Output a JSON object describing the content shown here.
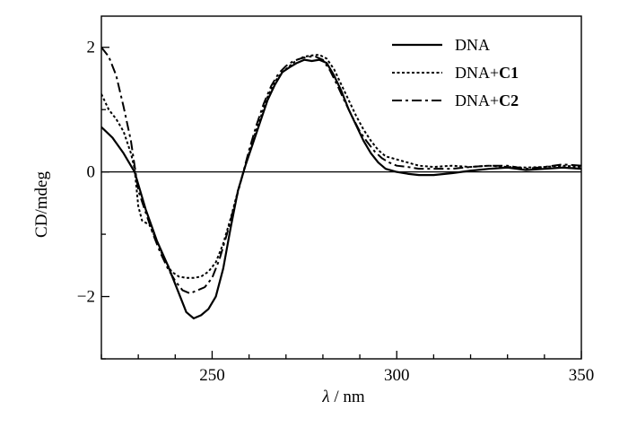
{
  "chart_data": {
    "type": "line",
    "xlabel": {
      "symbol": "λ",
      "unit": "/ nm"
    },
    "ylabel": "CD/mdeg",
    "xlim": [
      220,
      350
    ],
    "ylim": [
      -3.0,
      2.5
    ],
    "xticks": [
      250,
      300,
      350
    ],
    "xtick_labels": [
      "250",
      "300",
      "350"
    ],
    "yticks": [
      -2,
      0,
      2
    ],
    "ytick_labels": [
      "−2",
      "0",
      "2"
    ],
    "x_minor_step": 10,
    "y_minor_step": 1,
    "zero_line": true,
    "grid": false,
    "legend_position": "top-right",
    "series": [
      {
        "name": "DNA",
        "name_prefix": "DNA",
        "name_bold": "",
        "style": "solid",
        "points": [
          [
            220,
            0.72
          ],
          [
            223,
            0.55
          ],
          [
            226,
            0.3
          ],
          [
            229,
            0.0
          ],
          [
            232,
            -0.6
          ],
          [
            235,
            -1.1
          ],
          [
            238,
            -1.5
          ],
          [
            241,
            -1.95
          ],
          [
            243,
            -2.25
          ],
          [
            245,
            -2.35
          ],
          [
            247,
            -2.3
          ],
          [
            249,
            -2.2
          ],
          [
            251,
            -2.0
          ],
          [
            253,
            -1.55
          ],
          [
            255,
            -0.9
          ],
          [
            257,
            -0.3
          ],
          [
            259,
            0.1
          ],
          [
            261,
            0.45
          ],
          [
            263,
            0.8
          ],
          [
            265,
            1.15
          ],
          [
            267,
            1.4
          ],
          [
            269,
            1.6
          ],
          [
            271,
            1.68
          ],
          [
            273,
            1.75
          ],
          [
            275,
            1.8
          ],
          [
            277,
            1.78
          ],
          [
            279,
            1.8
          ],
          [
            281,
            1.75
          ],
          [
            283,
            1.55
          ],
          [
            285,
            1.3
          ],
          [
            287,
            1.0
          ],
          [
            289,
            0.75
          ],
          [
            291,
            0.5
          ],
          [
            293,
            0.3
          ],
          [
            295,
            0.15
          ],
          [
            297,
            0.05
          ],
          [
            300,
            0.0
          ],
          [
            303,
            -0.03
          ],
          [
            306,
            -0.05
          ],
          [
            310,
            -0.05
          ],
          [
            315,
            -0.02
          ],
          [
            320,
            0.02
          ],
          [
            325,
            0.05
          ],
          [
            330,
            0.07
          ],
          [
            335,
            0.03
          ],
          [
            340,
            0.05
          ],
          [
            345,
            0.07
          ],
          [
            350,
            0.05
          ]
        ]
      },
      {
        "name": "DNA+C1",
        "name_prefix": "DNA+",
        "name_bold": "C1",
        "style": "dotted",
        "points": [
          [
            220,
            1.25
          ],
          [
            222,
            1.0
          ],
          [
            224,
            0.85
          ],
          [
            226,
            0.65
          ],
          [
            228,
            0.3
          ],
          [
            229,
            0.05
          ],
          [
            230,
            -0.55
          ],
          [
            231,
            -0.78
          ],
          [
            233,
            -0.85
          ],
          [
            235,
            -1.1
          ],
          [
            237,
            -1.4
          ],
          [
            239,
            -1.6
          ],
          [
            241,
            -1.68
          ],
          [
            243,
            -1.7
          ],
          [
            245,
            -1.7
          ],
          [
            247,
            -1.68
          ],
          [
            249,
            -1.6
          ],
          [
            251,
            -1.45
          ],
          [
            253,
            -1.15
          ],
          [
            255,
            -0.75
          ],
          [
            257,
            -0.3
          ],
          [
            259,
            0.1
          ],
          [
            261,
            0.5
          ],
          [
            263,
            0.85
          ],
          [
            265,
            1.2
          ],
          [
            267,
            1.45
          ],
          [
            269,
            1.6
          ],
          [
            271,
            1.7
          ],
          [
            273,
            1.8
          ],
          [
            275,
            1.85
          ],
          [
            277,
            1.87
          ],
          [
            279,
            1.88
          ],
          [
            281,
            1.82
          ],
          [
            283,
            1.65
          ],
          [
            285,
            1.4
          ],
          [
            287,
            1.15
          ],
          [
            289,
            0.9
          ],
          [
            291,
            0.68
          ],
          [
            293,
            0.5
          ],
          [
            295,
            0.35
          ],
          [
            297,
            0.25
          ],
          [
            300,
            0.2
          ],
          [
            303,
            0.15
          ],
          [
            306,
            0.1
          ],
          [
            310,
            0.08
          ],
          [
            315,
            0.1
          ],
          [
            320,
            0.08
          ],
          [
            325,
            0.1
          ],
          [
            330,
            0.08
          ],
          [
            335,
            0.07
          ],
          [
            340,
            0.08
          ],
          [
            345,
            0.1
          ],
          [
            350,
            0.08
          ]
        ]
      },
      {
        "name": "DNA+C2",
        "name_prefix": "DNA+",
        "name_bold": "C2",
        "style": "dashdot",
        "points": [
          [
            220,
            2.0
          ],
          [
            222,
            1.85
          ],
          [
            224,
            1.55
          ],
          [
            226,
            1.05
          ],
          [
            228,
            0.5
          ],
          [
            229,
            0.1
          ],
          [
            230,
            -0.3
          ],
          [
            232,
            -0.65
          ],
          [
            234,
            -1.0
          ],
          [
            236,
            -1.3
          ],
          [
            238,
            -1.55
          ],
          [
            240,
            -1.75
          ],
          [
            242,
            -1.9
          ],
          [
            244,
            -1.95
          ],
          [
            246,
            -1.9
          ],
          [
            248,
            -1.85
          ],
          [
            250,
            -1.7
          ],
          [
            252,
            -1.4
          ],
          [
            254,
            -1.0
          ],
          [
            256,
            -0.55
          ],
          [
            258,
            -0.1
          ],
          [
            260,
            0.35
          ],
          [
            262,
            0.75
          ],
          [
            264,
            1.1
          ],
          [
            266,
            1.38
          ],
          [
            268,
            1.58
          ],
          [
            270,
            1.7
          ],
          [
            272,
            1.78
          ],
          [
            274,
            1.82
          ],
          [
            276,
            1.85
          ],
          [
            278,
            1.85
          ],
          [
            280,
            1.8
          ],
          [
            282,
            1.62
          ],
          [
            284,
            1.38
          ],
          [
            286,
            1.12
          ],
          [
            288,
            0.88
          ],
          [
            290,
            0.65
          ],
          [
            292,
            0.48
          ],
          [
            294,
            0.33
          ],
          [
            296,
            0.22
          ],
          [
            298,
            0.15
          ],
          [
            300,
            0.1
          ],
          [
            303,
            0.08
          ],
          [
            306,
            0.05
          ],
          [
            310,
            0.05
          ],
          [
            315,
            0.05
          ],
          [
            320,
            0.08
          ],
          [
            325,
            0.1
          ],
          [
            330,
            0.1
          ],
          [
            335,
            0.05
          ],
          [
            340,
            0.08
          ],
          [
            345,
            0.12
          ],
          [
            350,
            0.1
          ]
        ]
      }
    ]
  }
}
